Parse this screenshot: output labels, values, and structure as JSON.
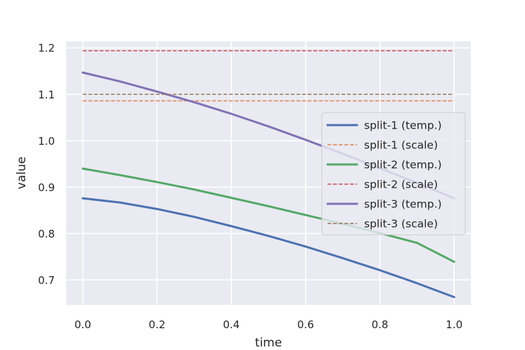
{
  "chart_data": {
    "type": "line",
    "title": "",
    "xlabel": "time",
    "ylabel": "value",
    "xlim": [
      -0.045,
      1.045
    ],
    "ylim": [
      0.646,
      1.214
    ],
    "xticks": [
      "0.0",
      "0.2",
      "0.4",
      "0.6",
      "0.8",
      "1.0"
    ],
    "yticks": [
      "0.7",
      "0.8",
      "0.9",
      "1.0",
      "1.1",
      "1.2"
    ],
    "grid": true,
    "legend_position": "center-right",
    "x": [
      0.0,
      0.1,
      0.2,
      0.3,
      0.4,
      0.5,
      0.6,
      0.7,
      0.8,
      0.9,
      1.0
    ],
    "series": [
      {
        "name": "split-1 (temp.)",
        "style": "solid",
        "color": "#4c72b0",
        "values": [
          0.876,
          0.867,
          0.853,
          0.836,
          0.816,
          0.795,
          0.772,
          0.747,
          0.721,
          0.693,
          0.663
        ]
      },
      {
        "name": "split-1 (scale)",
        "style": "dashed",
        "color": "#dd8452",
        "values": [
          1.086,
          1.086,
          1.086,
          1.086,
          1.086,
          1.086,
          1.086,
          1.086,
          1.086,
          1.086,
          1.086
        ]
      },
      {
        "name": "split-2 (temp.)",
        "style": "solid",
        "color": "#55a868",
        "values": [
          0.94,
          0.926,
          0.911,
          0.895,
          0.877,
          0.859,
          0.84,
          0.821,
          0.801,
          0.78,
          0.739
        ]
      },
      {
        "name": "split-2 (scale)",
        "style": "dashed",
        "color": "#c44e52",
        "values": [
          1.194,
          1.194,
          1.194,
          1.194,
          1.194,
          1.194,
          1.194,
          1.194,
          1.194,
          1.194,
          1.194
        ]
      },
      {
        "name": "split-3 (temp.)",
        "style": "solid",
        "color": "#8172b3",
        "values": [
          1.147,
          1.128,
          1.106,
          1.083,
          1.058,
          1.031,
          1.002,
          0.972,
          0.941,
          0.909,
          0.876
        ]
      },
      {
        "name": "split-3 (scale)",
        "style": "dashed",
        "color": "#937860",
        "values": [
          1.1,
          1.1,
          1.1,
          1.1,
          1.1,
          1.1,
          1.1,
          1.1,
          1.1,
          1.1,
          1.1
        ]
      }
    ]
  }
}
